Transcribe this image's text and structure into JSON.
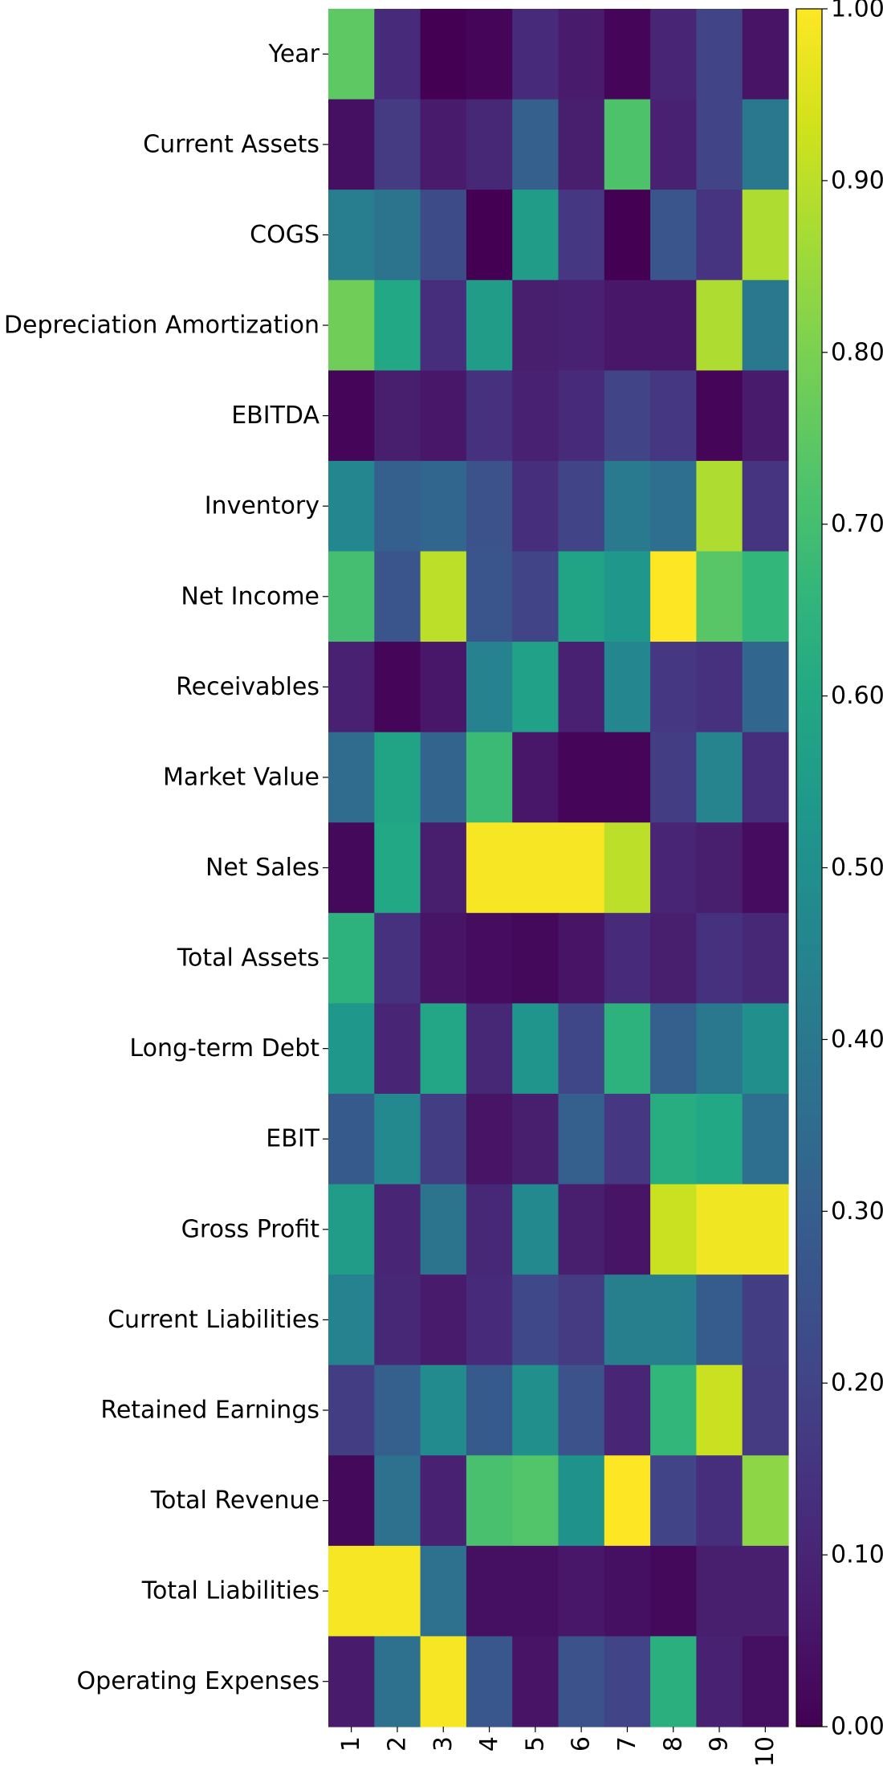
{
  "chart_data": {
    "type": "heatmap",
    "title": "",
    "xlabel": "",
    "ylabel": "",
    "x_categories": [
      "1",
      "2",
      "3",
      "4",
      "5",
      "6",
      "7",
      "8",
      "9",
      "10"
    ],
    "y_categories": [
      "Year",
      "Current Assets",
      "COGS",
      "Depreciation Amortization",
      "EBITDA",
      "Inventory",
      "Net Income",
      "Receivables",
      "Market Value",
      "Net Sales",
      "Total Assets",
      "Long-term Debt",
      "EBIT",
      "Gross Profit",
      "Current Liabilities",
      "Retained Earnings",
      "Total Revenue",
      "Total Liabilities",
      "Operating Expenses"
    ],
    "values": [
      [
        0.75,
        0.12,
        0.0,
        0.01,
        0.12,
        0.07,
        0.01,
        0.1,
        0.2,
        0.05
      ],
      [
        0.04,
        0.17,
        0.07,
        0.11,
        0.3,
        0.08,
        0.72,
        0.09,
        0.2,
        0.4
      ],
      [
        0.42,
        0.38,
        0.23,
        0.0,
        0.55,
        0.16,
        0.0,
        0.26,
        0.15,
        0.88
      ],
      [
        0.78,
        0.6,
        0.13,
        0.55,
        0.08,
        0.09,
        0.06,
        0.06,
        0.88,
        0.4
      ],
      [
        0.01,
        0.08,
        0.06,
        0.14,
        0.09,
        0.12,
        0.2,
        0.16,
        0.01,
        0.07
      ],
      [
        0.46,
        0.3,
        0.33,
        0.25,
        0.13,
        0.2,
        0.41,
        0.36,
        0.88,
        0.15
      ],
      [
        0.7,
        0.26,
        0.9,
        0.26,
        0.2,
        0.58,
        0.53,
        1.0,
        0.74,
        0.66
      ],
      [
        0.09,
        0.01,
        0.06,
        0.44,
        0.57,
        0.09,
        0.46,
        0.16,
        0.14,
        0.33
      ],
      [
        0.35,
        0.58,
        0.32,
        0.68,
        0.06,
        0.01,
        0.01,
        0.18,
        0.45,
        0.13
      ],
      [
        0.02,
        0.6,
        0.08,
        0.99,
        0.99,
        0.99,
        0.9,
        0.1,
        0.08,
        0.03
      ],
      [
        0.64,
        0.14,
        0.05,
        0.03,
        0.02,
        0.05,
        0.12,
        0.08,
        0.14,
        0.11
      ],
      [
        0.53,
        0.1,
        0.59,
        0.11,
        0.52,
        0.21,
        0.64,
        0.3,
        0.4,
        0.5
      ],
      [
        0.28,
        0.47,
        0.18,
        0.05,
        0.08,
        0.3,
        0.16,
        0.62,
        0.6,
        0.36
      ],
      [
        0.55,
        0.1,
        0.38,
        0.11,
        0.47,
        0.08,
        0.05,
        0.92,
        0.98,
        0.98
      ],
      [
        0.44,
        0.11,
        0.07,
        0.12,
        0.22,
        0.17,
        0.43,
        0.43,
        0.29,
        0.18
      ],
      [
        0.18,
        0.3,
        0.48,
        0.28,
        0.5,
        0.25,
        0.1,
        0.66,
        0.92,
        0.17
      ],
      [
        0.02,
        0.37,
        0.09,
        0.71,
        0.73,
        0.51,
        1.0,
        0.2,
        0.13,
        0.83
      ],
      [
        0.99,
        0.99,
        0.37,
        0.04,
        0.04,
        0.06,
        0.04,
        0.02,
        0.08,
        0.08
      ],
      [
        0.07,
        0.37,
        0.99,
        0.27,
        0.05,
        0.25,
        0.2,
        0.63,
        0.09,
        0.04
      ]
    ],
    "colormap": "viridis",
    "colorbar": {
      "range": [
        0.0,
        1.0
      ],
      "ticks": [
        0.0,
        0.1,
        0.2,
        0.3,
        0.4,
        0.5,
        0.6,
        0.7,
        0.8,
        0.9,
        1.0
      ],
      "tick_labels": [
        "0.00",
        "0.10",
        "0.20",
        "0.30",
        "0.40",
        "0.50",
        "0.60",
        "0.70",
        "0.80",
        "0.90",
        "1.00"
      ]
    },
    "grid": false,
    "legend": "colorbar-right"
  }
}
